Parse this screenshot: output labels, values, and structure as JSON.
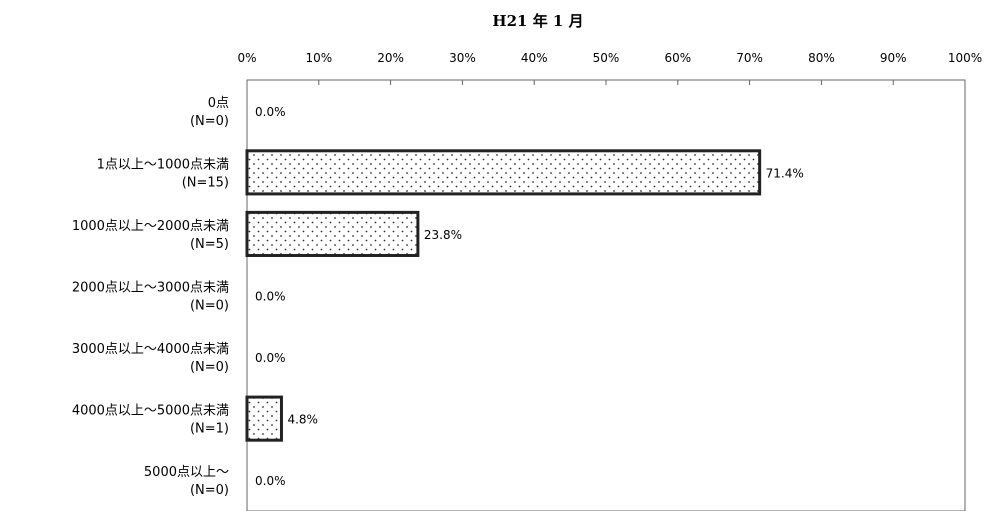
{
  "chart_data": {
    "type": "bar",
    "orientation": "horizontal",
    "title": "H21 年 1 月",
    "xlim": [
      0,
      100
    ],
    "x_ticks": [
      "0%",
      "10%",
      "20%",
      "30%",
      "40%",
      "50%",
      "60%",
      "70%",
      "80%",
      "90%",
      "100%"
    ],
    "grid": false,
    "categories": [
      {
        "label": "0点",
        "n": "(N=0)"
      },
      {
        "label": "1点以上～1000点未満",
        "n": "(N=15)"
      },
      {
        "label": "1000点以上～2000点未満",
        "n": "(N=5)"
      },
      {
        "label": "2000点以上～3000点未満",
        "n": "(N=0)"
      },
      {
        "label": "3000点以上～4000点未満",
        "n": "(N=0)"
      },
      {
        "label": "4000点以上～5000点未満",
        "n": "(N=1)"
      },
      {
        "label": "5000点以上～",
        "n": "(N=0)"
      }
    ],
    "values": [
      0.0,
      71.4,
      23.8,
      0.0,
      0.0,
      4.8,
      0.0
    ],
    "value_labels": [
      "0.0%",
      "71.4%",
      "23.8%",
      "0.0%",
      "0.0%",
      "4.8%",
      "0.0%"
    ],
    "bar_fill": "dotted"
  }
}
